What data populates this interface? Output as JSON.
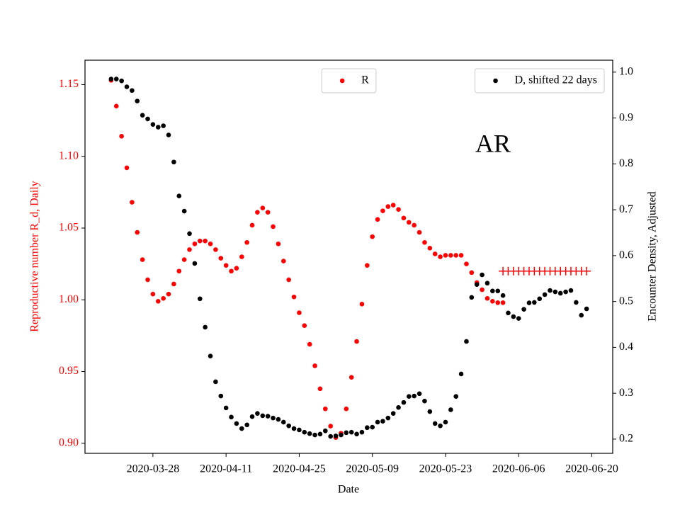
{
  "chart_data": {
    "type": "scatter",
    "xlabel": "Date",
    "ylabel": "Reproductive number R_d, Daily",
    "y2label": "Encounter Density, Adjusted",
    "annotation": "AR",
    "xlim": [
      "2020-03-15",
      "2020-06-24"
    ],
    "xticks": [
      "2020-03-28",
      "2020-04-11",
      "2020-04-25",
      "2020-05-09",
      "2020-05-23",
      "2020-06-06",
      "2020-06-20"
    ],
    "ylim": [
      0.893,
      1.167
    ],
    "yticks": [
      {
        "value": 0.9,
        "label": "0.90"
      },
      0.95,
      {
        "value": 1.0,
        "label": "1.00"
      },
      1.05,
      {
        "value": 1.1,
        "label": "1.10"
      },
      1.15
    ],
    "y2lim": [
      0.169,
      1.026
    ],
    "y2ticks": [
      0.2,
      0.3,
      0.4,
      0.5,
      0.6,
      0.7,
      0.8,
      0.9,
      {
        "value": 1.0,
        "label": "1.0"
      }
    ],
    "ycolor": "#ff0000",
    "series": [
      {
        "name": "R",
        "color": "#ff0000",
        "marker": "dot",
        "legend": "upper center",
        "start": "2020-03-20",
        "values": [
          1.153,
          1.135,
          1.114,
          1.092,
          1.068,
          1.047,
          1.028,
          1.014,
          1.004,
          0.999,
          1.001,
          1.004,
          1.011,
          1.02,
          1.028,
          1.035,
          1.039,
          1.041,
          1.041,
          1.039,
          1.035,
          1.029,
          1.024,
          1.02,
          1.022,
          1.03,
          1.04,
          1.052,
          1.061,
          1.064,
          1.061,
          1.051,
          1.039,
          1.027,
          1.014,
          1.002,
          0.991,
          0.982,
          0.969,
          0.954,
          0.938,
          0.924,
          0.912,
          0.904,
          0.907,
          0.924,
          0.946,
          0.971,
          0.997,
          1.024,
          1.044,
          1.056,
          1.062,
          1.065,
          1.066,
          1.063,
          1.057,
          1.054,
          1.052,
          1.047,
          1.04,
          1.036,
          1.032,
          1.03,
          1.031,
          1.031,
          1.031,
          1.031,
          1.025,
          1.019,
          1.012,
          1.007,
          1.001,
          0.999,
          0.998,
          0.998
        ]
      },
      {
        "color": "#ff0000",
        "marker": "plus",
        "start": "2020-06-03",
        "values": [
          1.02,
          1.02,
          1.02,
          1.02,
          1.02,
          1.02,
          1.02,
          1.02,
          1.02,
          1.02,
          1.02,
          1.02,
          1.02,
          1.02,
          1.02,
          1.02,
          1.02
        ]
      },
      {
        "name": "D, shifted 22 days",
        "color": "#000000",
        "marker": "dot",
        "axis": "y2",
        "legend": "upper right",
        "start": "2020-03-20",
        "values": [
          0.985,
          0.985,
          0.981,
          0.968,
          0.96,
          0.937,
          0.906,
          0.898,
          0.886,
          0.88,
          0.883,
          0.863,
          0.804,
          0.73,
          0.697,
          0.648,
          0.583,
          0.506,
          0.444,
          0.381,
          0.325,
          0.294,
          0.268,
          0.248,
          0.234,
          0.223,
          0.231,
          0.249,
          0.256,
          0.251,
          0.25,
          0.246,
          0.243,
          0.237,
          0.229,
          0.223,
          0.22,
          0.215,
          0.212,
          0.209,
          0.211,
          0.218,
          0.206,
          0.207,
          0.209,
          0.214,
          0.215,
          0.211,
          0.215,
          0.225,
          0.226,
          0.237,
          0.239,
          0.246,
          0.256,
          0.269,
          0.28,
          0.293,
          0.294,
          0.299,
          0.283,
          0.26,
          0.234,
          0.229,
          0.237,
          0.264,
          0.293,
          0.342,
          0.413,
          0.509,
          0.537,
          0.558,
          0.54,
          0.523,
          0.523,
          0.513,
          0.475,
          0.467,
          0.463,
          0.483,
          0.497,
          0.498,
          0.506,
          0.515,
          0.524,
          0.521,
          0.518,
          0.521,
          0.524,
          0.498,
          0.47,
          0.484
        ]
      }
    ]
  }
}
